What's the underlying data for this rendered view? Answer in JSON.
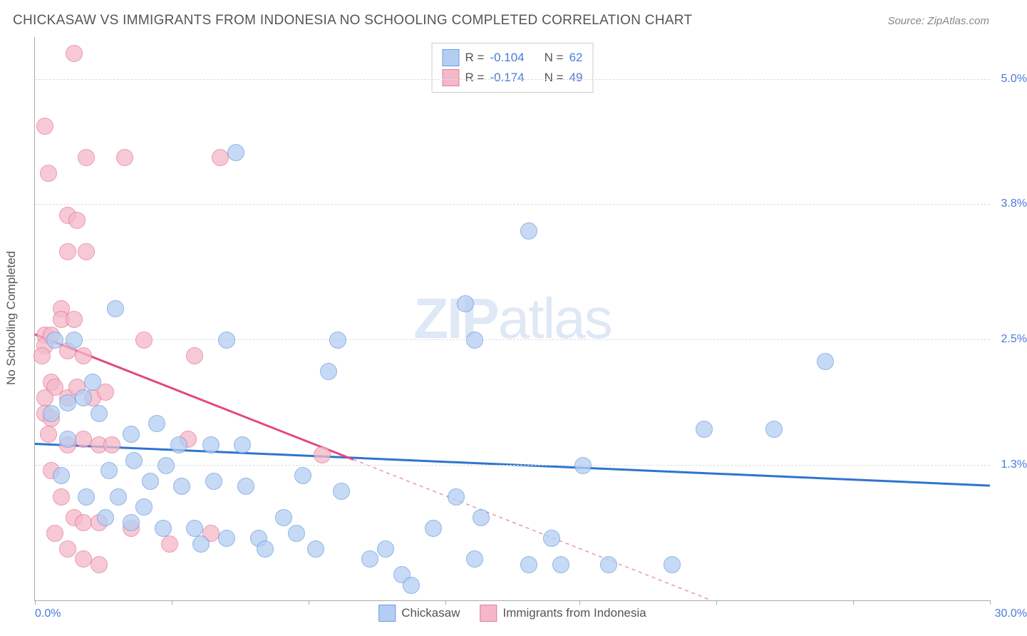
{
  "title": "CHICKASAW VS IMMIGRANTS FROM INDONESIA NO SCHOOLING COMPLETED CORRELATION CHART",
  "source": "Source: ZipAtlas.com",
  "y_label": "No Schooling Completed",
  "x_range": {
    "min": 0,
    "max": 30,
    "min_label": "0.0%",
    "max_label": "30.0%"
  },
  "y_range": {
    "min": 0,
    "max": 5.4
  },
  "y_ticks": [
    {
      "value": 1.3,
      "label": "1.3%"
    },
    {
      "value": 2.5,
      "label": "2.5%"
    },
    {
      "value": 3.8,
      "label": "3.8%"
    },
    {
      "value": 5.0,
      "label": "5.0%"
    }
  ],
  "x_ticks": [
    0,
    4.3,
    8.6,
    12.9,
    17.1,
    21.4,
    25.7,
    30
  ],
  "series": {
    "a": {
      "name": "Chickasaw",
      "fill": "#b3cef2",
      "stroke": "#6d9de0",
      "line_color": "#2f74d0",
      "r_value": "-0.104",
      "n_value": "62",
      "trend": {
        "x1": 0,
        "y1": 1.5,
        "x2": 30,
        "y2": 1.1,
        "extrapolate_from": 30
      },
      "points": [
        [
          2.5,
          2.8
        ],
        [
          6.3,
          4.3
        ],
        [
          13.8,
          2.5
        ],
        [
          9.2,
          2.2
        ],
        [
          9.5,
          2.5
        ],
        [
          6.0,
          2.5
        ],
        [
          1.8,
          2.1
        ],
        [
          1.0,
          1.9
        ],
        [
          3.0,
          1.6
        ],
        [
          4.5,
          1.5
        ],
        [
          5.5,
          1.5
        ],
        [
          6.5,
          1.5
        ],
        [
          3.8,
          1.7
        ],
        [
          0.5,
          1.8
        ],
        [
          0.8,
          1.2
        ],
        [
          2.3,
          1.25
        ],
        [
          1.6,
          1.0
        ],
        [
          2.6,
          1.0
        ],
        [
          3.6,
          1.15
        ],
        [
          4.6,
          1.1
        ],
        [
          5.6,
          1.15
        ],
        [
          6.6,
          1.1
        ],
        [
          8.4,
          1.2
        ],
        [
          3.0,
          0.75
        ],
        [
          4.0,
          0.7
        ],
        [
          5.0,
          0.7
        ],
        [
          6.0,
          0.6
        ],
        [
          7.0,
          0.6
        ],
        [
          8.2,
          0.65
        ],
        [
          3.4,
          0.9
        ],
        [
          5.2,
          0.55
        ],
        [
          7.8,
          0.8
        ],
        [
          10.5,
          0.4
        ],
        [
          11.0,
          0.5
        ],
        [
          11.5,
          0.25
        ],
        [
          11.8,
          0.15
        ],
        [
          12.5,
          0.7
        ],
        [
          13.2,
          1.0
        ],
        [
          13.8,
          0.4
        ],
        [
          14.0,
          0.8
        ],
        [
          15.5,
          0.35
        ],
        [
          16.2,
          0.6
        ],
        [
          16.5,
          0.35
        ],
        [
          17.2,
          1.3
        ],
        [
          18.0,
          0.35
        ],
        [
          20.0,
          0.35
        ],
        [
          3.1,
          1.35
        ],
        [
          4.1,
          1.3
        ],
        [
          7.2,
          0.5
        ],
        [
          8.8,
          0.5
        ],
        [
          9.6,
          1.05
        ],
        [
          15.5,
          3.55
        ],
        [
          13.5,
          2.85
        ],
        [
          21.0,
          1.65
        ],
        [
          23.2,
          1.65
        ],
        [
          24.8,
          2.3
        ],
        [
          1.2,
          2.5
        ],
        [
          1.5,
          1.95
        ],
        [
          0.6,
          2.5
        ],
        [
          2.0,
          1.8
        ],
        [
          1.0,
          1.55
        ],
        [
          2.2,
          0.8
        ]
      ]
    },
    "b": {
      "name": "Immigrants from Indonesia",
      "fill": "#f5b8c8",
      "stroke": "#e27a9a",
      "line_color": "#e24a7a",
      "r_value": "-0.174",
      "n_value": "49",
      "trend": {
        "x1": 0,
        "y1": 2.55,
        "x2": 10,
        "y2": 1.35,
        "extrapolate_from": 10
      },
      "points": [
        [
          1.2,
          5.25
        ],
        [
          0.3,
          4.55
        ],
        [
          0.4,
          4.1
        ],
        [
          1.6,
          4.25
        ],
        [
          2.8,
          4.25
        ],
        [
          5.8,
          4.25
        ],
        [
          1.0,
          3.7
        ],
        [
          1.3,
          3.65
        ],
        [
          1.0,
          3.35
        ],
        [
          1.6,
          3.35
        ],
        [
          0.8,
          2.8
        ],
        [
          0.8,
          2.7
        ],
        [
          1.2,
          2.7
        ],
        [
          0.3,
          2.55
        ],
        [
          0.3,
          2.45
        ],
        [
          0.5,
          2.55
        ],
        [
          0.2,
          2.35
        ],
        [
          1.0,
          2.4
        ],
        [
          1.5,
          2.35
        ],
        [
          3.4,
          2.5
        ],
        [
          5.0,
          2.35
        ],
        [
          0.5,
          2.1
        ],
        [
          0.6,
          2.05
        ],
        [
          0.3,
          1.95
        ],
        [
          1.0,
          1.95
        ],
        [
          1.3,
          2.05
        ],
        [
          1.8,
          1.95
        ],
        [
          2.2,
          2.0
        ],
        [
          0.3,
          1.8
        ],
        [
          0.5,
          1.75
        ],
        [
          0.4,
          1.6
        ],
        [
          1.0,
          1.5
        ],
        [
          1.5,
          1.55
        ],
        [
          2.0,
          1.5
        ],
        [
          2.4,
          1.5
        ],
        [
          4.8,
          1.55
        ],
        [
          0.5,
          1.25
        ],
        [
          0.8,
          1.0
        ],
        [
          1.2,
          0.8
        ],
        [
          1.5,
          0.75
        ],
        [
          2.0,
          0.75
        ],
        [
          0.6,
          0.65
        ],
        [
          1.0,
          0.5
        ],
        [
          1.5,
          0.4
        ],
        [
          2.0,
          0.35
        ],
        [
          3.0,
          0.7
        ],
        [
          4.2,
          0.55
        ],
        [
          5.5,
          0.65
        ],
        [
          9.0,
          1.4
        ]
      ]
    }
  },
  "watermark": {
    "bold": "ZIP",
    "light": "atlas"
  },
  "legend_top_labels": {
    "r": "R =",
    "n": "N ="
  },
  "colors": {
    "grid": "#dddddd",
    "text": "#555555",
    "value": "#4a7bd8"
  }
}
